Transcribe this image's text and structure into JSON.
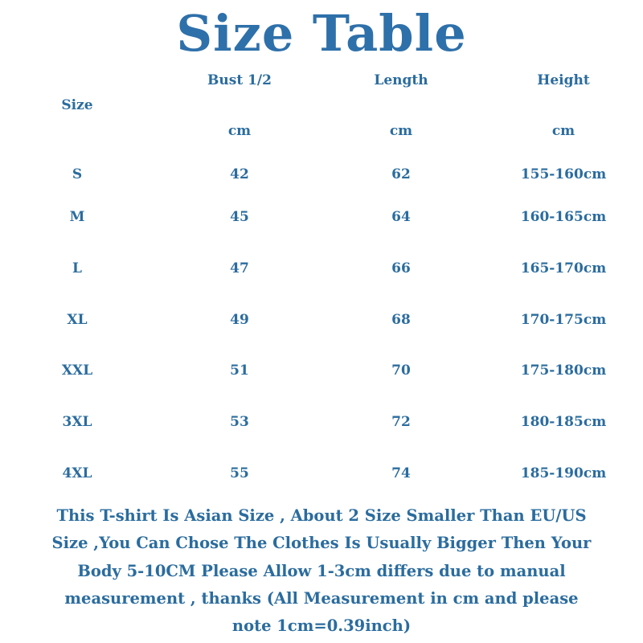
{
  "title": "Size Table",
  "headers": {
    "size": "Size",
    "bust": "Bust 1/2",
    "length": "Length",
    "height": "Height",
    "unit": "cm"
  },
  "rows": [
    {
      "size": "S",
      "bust": "42",
      "length": "62",
      "height": "155-160cm"
    },
    {
      "size": "M",
      "bust": "45",
      "length": "64",
      "height": "160-165cm"
    },
    {
      "size": "L",
      "bust": "47",
      "length": "66",
      "height": "165-170cm"
    },
    {
      "size": "XL",
      "bust": "49",
      "length": "68",
      "height": "170-175cm"
    },
    {
      "size": "XXL",
      "bust": "51",
      "length": "70",
      "height": "175-180cm"
    },
    {
      "size": "3XL",
      "bust": "53",
      "length": "72",
      "height": "180-185cm"
    },
    {
      "size": "4XL",
      "bust": "55",
      "length": "74",
      "height": "185-190cm"
    }
  ],
  "note_lines": [
    "This T-shirt Is Asian Size , About 2 Size Smaller Than EU/US",
    "Size ,You Can Chose The Clothes Is Usually Bigger Then Your",
    "Body 5-10CM Please Allow 1-3cm differs due to manual",
    "measurement , thanks (All Measurement in cm and please",
    "note 1cm=0.39inch)"
  ],
  "colors": {
    "title": "#2e70aa",
    "text": "#2b6c9e"
  }
}
